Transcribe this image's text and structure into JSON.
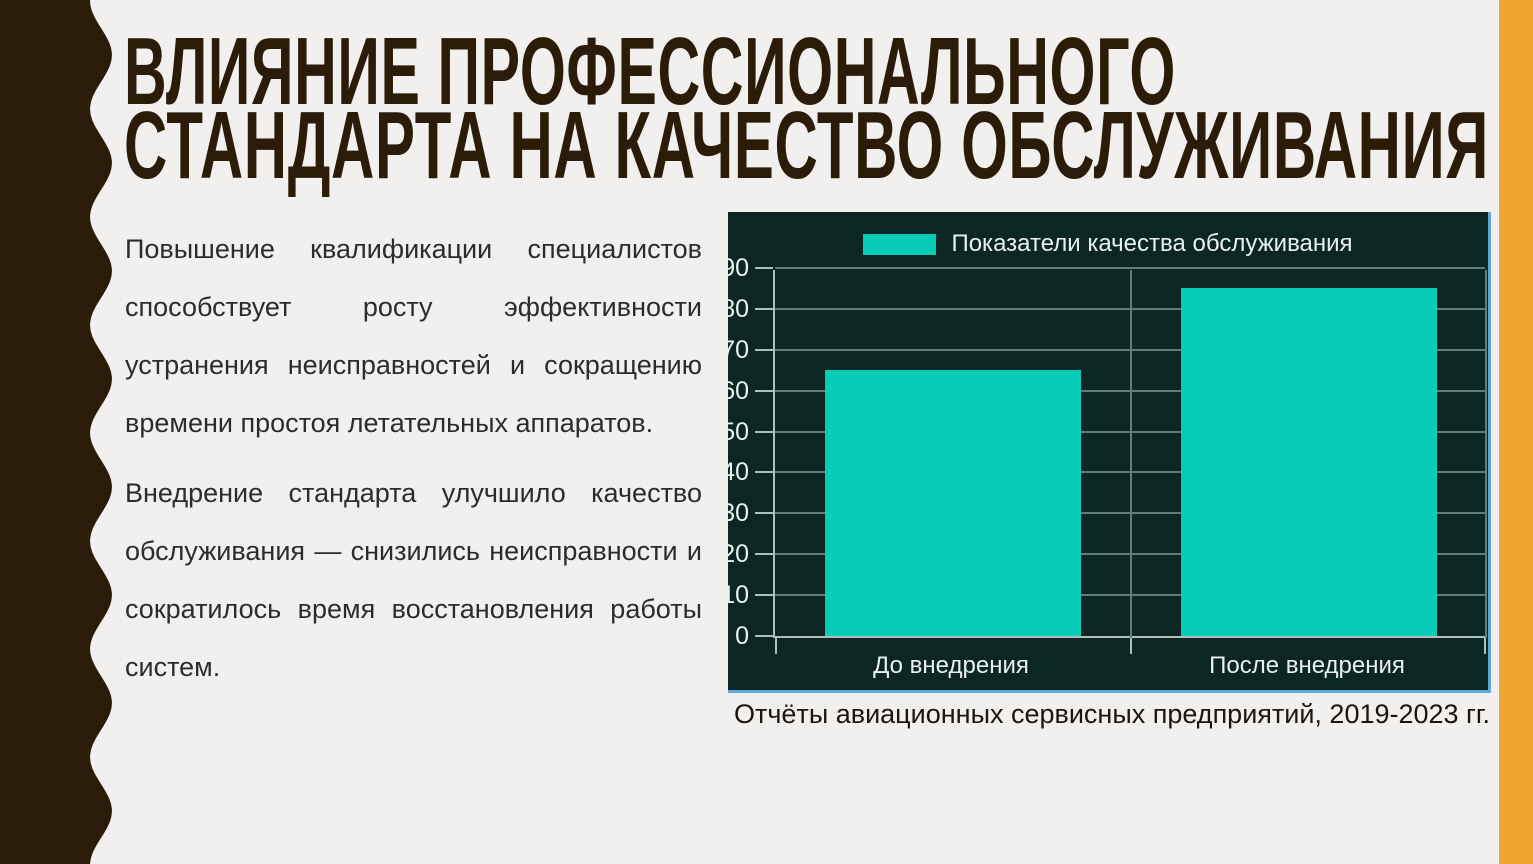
{
  "slide": {
    "title": {
      "line1": "ВЛИЯНИЕ ПРОФЕССИОНАЛЬНОГО",
      "line2": "СТАНДАРТА НА КАЧЕСТВО ОБСЛУЖИВАНИЯ"
    },
    "body": {
      "paragraph1": "Повышение квалификации специалистов способствует росту эффективности устранения неисправностей и сокращению времени простоя летательных аппаратов.",
      "paragraph2": "Внедрение стандарта улучшило качество обслуживания — снизились неисправности и сократилось время восстановления работы систем."
    },
    "caption": "Отчёты авиационных сервисных предприятий, 2019-2023 гг.",
    "colors": {
      "background": "#f1f0ee",
      "accent_brown": "#2b1c09",
      "accent_yellow": "#f0a431",
      "panel_background": "#0b2623",
      "bar": "#06ccb8",
      "grid": "#5c7f7a",
      "axis": "#aebfbb",
      "chart_text": "#e7f1ef",
      "chart_border_blue": "#5ea9da",
      "body_text": "#2d2c2a",
      "caption_text": "#1b150c"
    }
  },
  "chart_data": {
    "type": "bar",
    "title": "",
    "legend": [
      "Показатели качества обслуживания"
    ],
    "legend_position": "top",
    "categories": [
      "До внедрения",
      "После внедрения"
    ],
    "values": [
      65,
      85
    ],
    "xlabel": "",
    "ylabel": "",
    "ylim": [
      0,
      90
    ],
    "yticks": [
      0,
      10,
      20,
      30,
      40,
      50,
      60,
      70,
      80,
      90
    ],
    "grid": true,
    "bar_color": "#06ccb8"
  }
}
